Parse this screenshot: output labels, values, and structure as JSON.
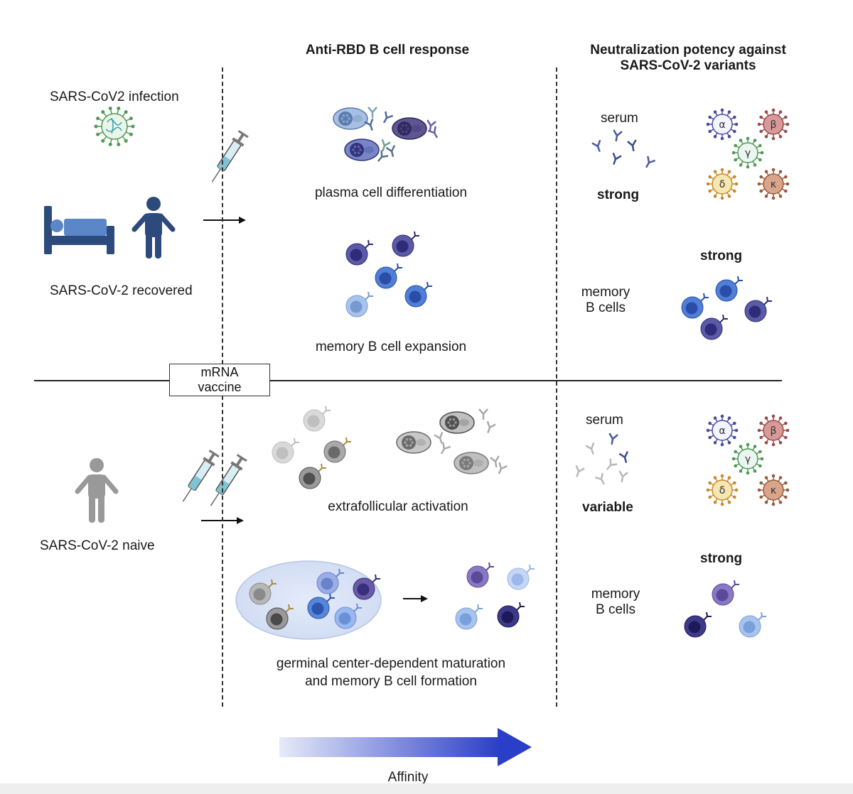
{
  "headers": {
    "b_cell_response": "Anti-RBD B cell response",
    "neutralization_line1": "Neutralization potency against",
    "neutralization_line2": "SARS-CoV-2 variants"
  },
  "left": {
    "infection_label": "SARS-CoV2 infection",
    "recovered_label": "SARS-CoV-2 recovered",
    "naive_label": "SARS-CoV-2 naive",
    "vaccine_line1": "mRNA",
    "vaccine_line2": "vaccine"
  },
  "middle": {
    "plasma": "plasma cell differentiation",
    "memory_expansion": "memory B cell expansion",
    "extrafollicular": "extrafollicular activation",
    "germinal_line1": "germinal center-dependent maturation",
    "germinal_line2": "and memory B cell formation"
  },
  "right_top": {
    "serum": "serum",
    "serum_strength": "strong",
    "memory_strength": "strong",
    "memory_line1": "memory",
    "memory_line2": "B cells"
  },
  "right_bottom": {
    "serum": "serum",
    "serum_strength": "variable",
    "memory_strength": "strong",
    "memory_line1": "memory",
    "memory_line2": "B cells"
  },
  "variants": {
    "alpha": "α",
    "beta": "β",
    "gamma": "γ",
    "delta": "δ",
    "kappa": "κ"
  },
  "affinity_label": "Affinity",
  "colors": {
    "person_recovered": "#2d4a7c",
    "person_naive": "#999999",
    "affinity_arrow": "#2a3ec7",
    "virus_green": "#4e9a52"
  }
}
